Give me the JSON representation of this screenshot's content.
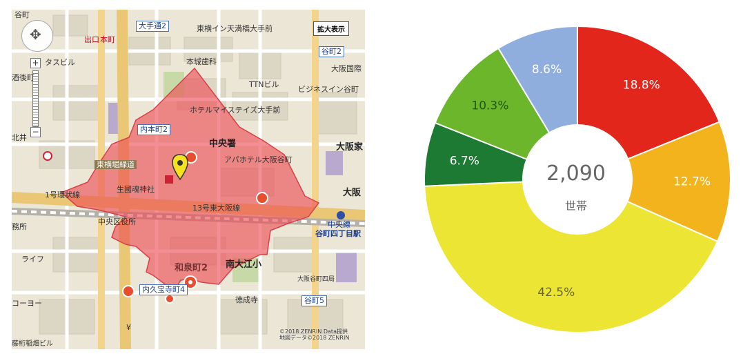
{
  "map": {
    "enlarge_button": "拡大表示",
    "copyright_line1": "©2018 ZENRIN Data提供",
    "copyright_line2": "地図データ©2018 ZENRIN",
    "boxed_labels": [
      "大手通2",
      "谷町2",
      "内本町2",
      "内久宝寺町4",
      "谷町5"
    ],
    "labels": {
      "top_left": "谷町",
      "hotel_toyoko": "東横イン天満橋大手前",
      "honmachi": "本町",
      "exit": "出口",
      "honjo_dental": "本城歯科",
      "osaka_kokusai": "大阪国際",
      "tasuburu": "タスビル",
      "ttn": "TTNビル",
      "business_inn": "ビジネスイン谷町",
      "hotel_mystays": "ホテルマイステイズ大手前",
      "chuo_police": "中央署",
      "apa_hotel": "アパホテル大阪谷町",
      "osaka_ka": "大阪家",
      "higashi_yokobori": "東横堀緑道",
      "ikukunitama": "生國魂神社",
      "osaka_r": "大阪",
      "loop_line": "1号環状線",
      "route13": "13号東大阪線",
      "chuo_ward_office": "中央区役所",
      "chuo_line": "中央線",
      "tanimachi_4": "谷町四丁目駅",
      "izumimachi": "和泉町2",
      "minami_oe": "南大江小",
      "osaka_tanimachi_po": "大阪谷町四局",
      "tokuseiji": "徳成寺",
      "corner_sho": "務所",
      "life": "ライフ",
      "kooyo": "コーヨー",
      "sakamachi": "酒後町",
      "kite": "北井",
      "fujiho": "藤桁稲畑ビル",
      "yen": "¥"
    }
  },
  "chart_data": {
    "type": "pie",
    "center_value": "2,090",
    "center_unit": "世帯",
    "slices": [
      {
        "label": "18.8%",
        "value": 18.8,
        "color": "#e3261c"
      },
      {
        "label": "12.7%",
        "value": 12.7,
        "color": "#f2b31c"
      },
      {
        "label": "42.5%",
        "value": 42.5,
        "color": "#ede534"
      },
      {
        "label": "6.7%",
        "value": 6.7,
        "color": "#1c7a32"
      },
      {
        "label": "10.3%",
        "value": 10.3,
        "color": "#6cb62c"
      },
      {
        "label": "8.6%",
        "value": 8.6,
        "color": "#8faedd"
      }
    ]
  }
}
